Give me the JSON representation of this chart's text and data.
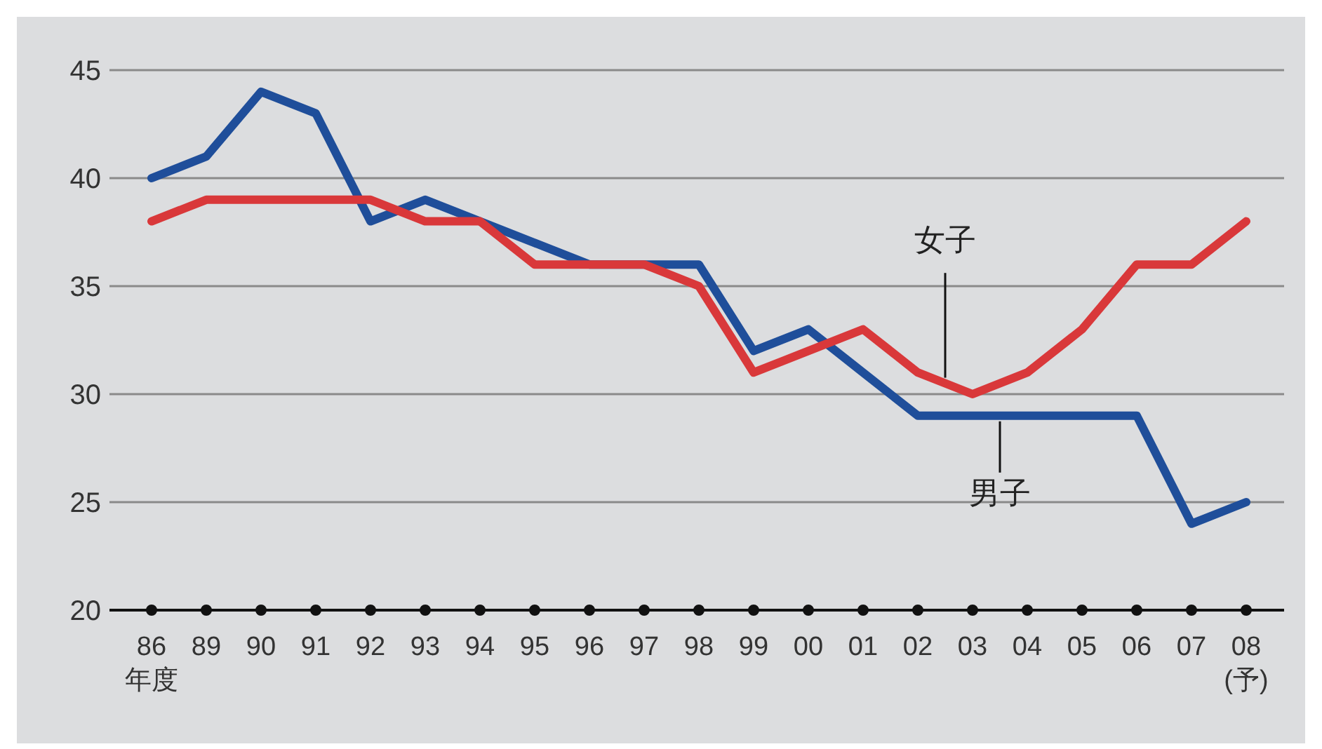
{
  "chart_data": {
    "type": "line",
    "categories": [
      "86",
      "89",
      "90",
      "91",
      "92",
      "93",
      "94",
      "95",
      "96",
      "97",
      "98",
      "99",
      "00",
      "01",
      "02",
      "03",
      "04",
      "05",
      "06",
      "07",
      "08\n(予)"
    ],
    "xlabel": "年度",
    "series": [
      {
        "name": "男子",
        "color": "#1f4e9a",
        "values": [
          40,
          41,
          44,
          43,
          38,
          39,
          38,
          37,
          36,
          36,
          36,
          32,
          33,
          31,
          29,
          29,
          29,
          29,
          29,
          24,
          25
        ]
      },
      {
        "name": "女子",
        "color": "#d9383a",
        "values": [
          38,
          39,
          39,
          39,
          39,
          38,
          38,
          36,
          36,
          36,
          35,
          31,
          32,
          33,
          31,
          30,
          31,
          33,
          36,
          36,
          38
        ]
      }
    ],
    "ylim": [
      20,
      45
    ],
    "yticks": [
      20,
      25,
      30,
      35,
      40,
      45
    ],
    "grid": "y",
    "legend": false,
    "marker": "none",
    "line_style": "solid"
  }
}
